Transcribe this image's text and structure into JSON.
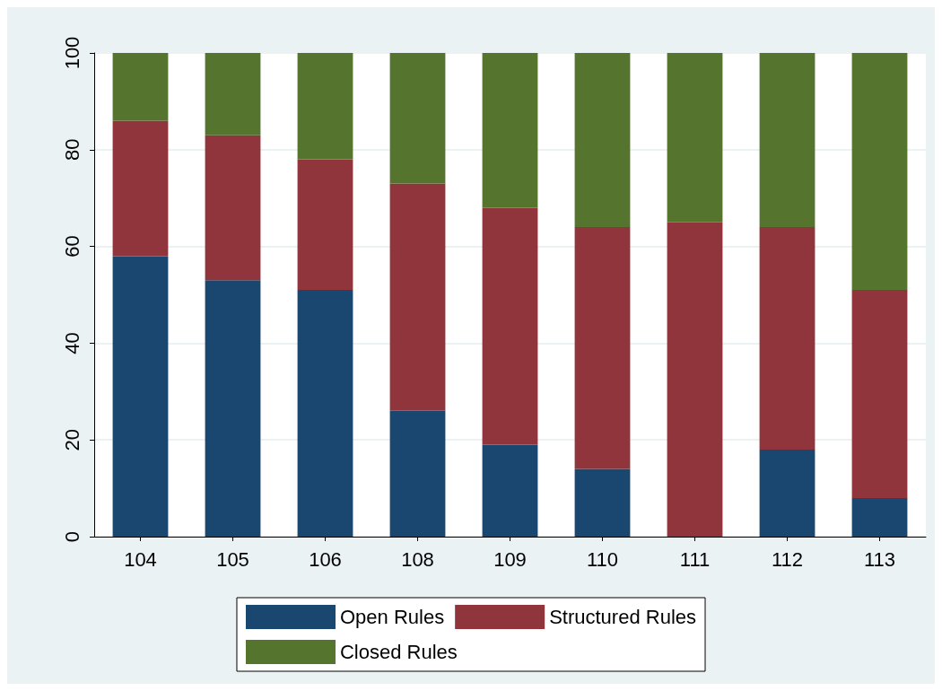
{
  "chart_data": {
    "type": "bar",
    "stacked": true,
    "categories": [
      "104",
      "105",
      "106",
      "108",
      "109",
      "110",
      "111",
      "112",
      "113"
    ],
    "series": [
      {
        "name": "Open Rules",
        "color": "#1a476f",
        "values": [
          58,
          53,
          51,
          26,
          19,
          14,
          0,
          18,
          8
        ]
      },
      {
        "name": "Structured Rules",
        "color": "#90353b",
        "values": [
          28,
          30,
          27,
          47,
          49,
          50,
          65,
          46,
          43
        ]
      },
      {
        "name": "Closed Rules",
        "color": "#55752f",
        "values": [
          14,
          17,
          22,
          27,
          32,
          36,
          35,
          36,
          49
        ]
      }
    ],
    "ylim": [
      0,
      100
    ],
    "yticks": [
      0,
      20,
      40,
      60,
      80,
      100
    ],
    "grid": "y",
    "legend": "bottom"
  }
}
